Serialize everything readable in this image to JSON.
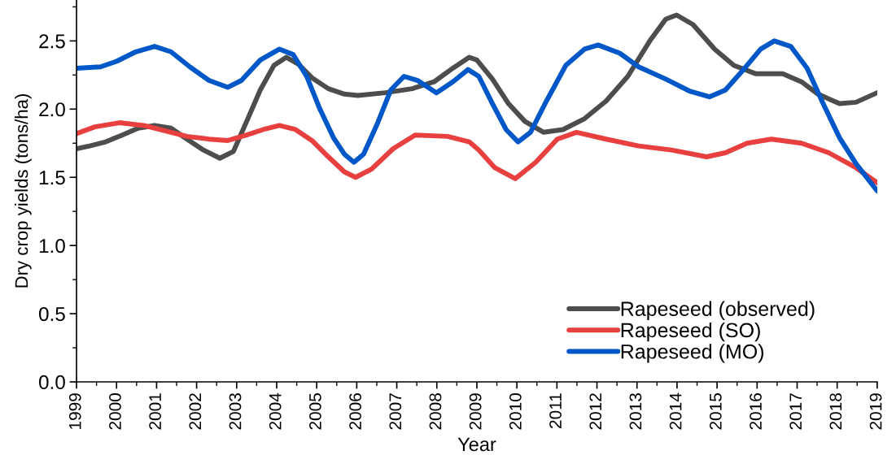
{
  "chart_data": {
    "type": "line",
    "xlabel": "Year",
    "ylabel": "Dry crop yields (tons/ha)",
    "xlim": [
      1999,
      2019
    ],
    "xticks": [
      1999,
      {
        "value": 1999.5,
        "label": null
      },
      2000,
      {
        "value": 2000.5,
        "label": null
      },
      2001,
      {
        "value": 2001.5,
        "label": null
      },
      2002,
      {
        "value": 2002.5,
        "label": null
      },
      2003,
      {
        "value": 2003.5,
        "label": null
      },
      2004,
      {
        "value": 2004.5,
        "label": null
      },
      2005,
      {
        "value": 2005.5,
        "label": null
      },
      2006,
      {
        "value": 2006.5,
        "label": null
      },
      2007,
      {
        "value": 2007.5,
        "label": null
      },
      2008,
      {
        "value": 2008.5,
        "label": null
      },
      2009,
      {
        "value": 2009.5,
        "label": null
      },
      2010,
      {
        "value": 2010.5,
        "label": null
      },
      2011,
      {
        "value": 2011.5,
        "label": null
      },
      2012,
      {
        "value": 2012.5,
        "label": null
      },
      2013,
      {
        "value": 2013.5,
        "label": null
      },
      2014,
      {
        "value": 2014.5,
        "label": null
      },
      2015,
      {
        "value": 2015.5,
        "label": null
      },
      2016,
      {
        "value": 2016.5,
        "label": null
      },
      2017,
      {
        "value": 2017.5,
        "label": null
      },
      2018,
      {
        "value": 2018.5,
        "label": null
      },
      2019
    ],
    "ylim": [
      0,
      2.8
    ],
    "yticks": [
      {
        "value": 0,
        "label": "0.0"
      },
      {
        "value": 0.25,
        "label": null
      },
      0.5,
      {
        "value": 0.75,
        "label": null
      },
      {
        "value": 1,
        "label": "1.0"
      },
      {
        "value": 1.25,
        "label": null
      },
      1.5,
      {
        "value": 1.75,
        "label": null
      },
      {
        "value": 2,
        "label": "2.0"
      },
      {
        "value": 2.25,
        "label": null
      },
      2.5,
      {
        "value": 2.75,
        "label": null
      }
    ],
    "legend": "bottom right",
    "line_style": "solid",
    "series": [
      {
        "name": "Rapeseed (observed)",
        "color": "#4d4d4d",
        "x": [
          1999,
          1999.33,
          1999.73,
          2000.14,
          2000.54,
          2000.95,
          2001.36,
          2001.76,
          2002.17,
          2002.58,
          2002.92,
          2003.25,
          2003.59,
          2003.93,
          2004.24,
          2004.54,
          2004.88,
          2005.29,
          2005.69,
          2006.03,
          2006.71,
          2007.39,
          2007.93,
          2008.4,
          2008.81,
          2009.0,
          2009.39,
          2009.79,
          2010.2,
          2010.67,
          2011.15,
          2011.69,
          2012.23,
          2012.77,
          2013.32,
          2013.72,
          2013.99,
          2014.4,
          2014.94,
          2015.42,
          2015.96,
          2016.64,
          2017.11,
          2017.52,
          2018.06,
          2018.47,
          2019
        ],
        "values": [
          1.71,
          1.73,
          1.76,
          1.81,
          1.86,
          1.88,
          1.86,
          1.78,
          1.7,
          1.64,
          1.69,
          1.91,
          2.14,
          2.32,
          2.38,
          2.33,
          2.23,
          2.15,
          2.11,
          2.1,
          2.12,
          2.15,
          2.2,
          2.3,
          2.38,
          2.36,
          2.22,
          2.04,
          1.91,
          1.83,
          1.85,
          1.93,
          2.06,
          2.24,
          2.5,
          2.66,
          2.69,
          2.62,
          2.44,
          2.32,
          2.26,
          2.26,
          2.2,
          2.11,
          2.04,
          2.05,
          2.12
        ]
      },
      {
        "name": "Rapeseed (SO)",
        "color": "#e8403f",
        "x": [
          1999,
          1999.46,
          2000.07,
          2000.68,
          2001.22,
          2001.76,
          2002.31,
          2002.78,
          2003.25,
          2003.66,
          2004.07,
          2004.47,
          2004.88,
          2005.29,
          2005.69,
          2005.97,
          2006.37,
          2006.91,
          2007.46,
          2008.27,
          2008.81,
          2009.05,
          2009.45,
          2009.96,
          2010.47,
          2011.01,
          2011.49,
          2012.23,
          2013.04,
          2013.86,
          2014.74,
          2015.21,
          2015.75,
          2016.36,
          2017.11,
          2017.79,
          2018.47,
          2019
        ],
        "values": [
          1.82,
          1.87,
          1.9,
          1.88,
          1.84,
          1.8,
          1.78,
          1.77,
          1.81,
          1.85,
          1.88,
          1.85,
          1.77,
          1.65,
          1.54,
          1.5,
          1.56,
          1.71,
          1.81,
          1.8,
          1.76,
          1.7,
          1.57,
          1.49,
          1.61,
          1.78,
          1.83,
          1.78,
          1.73,
          1.7,
          1.65,
          1.68,
          1.75,
          1.78,
          1.75,
          1.68,
          1.57,
          1.46
        ]
      },
      {
        "name": "Rapeseed (MO)",
        "color": "#0057c8",
        "x": [
          1999,
          1999.6,
          2000.0,
          2000.48,
          2000.95,
          2001.36,
          2001.83,
          2002.31,
          2002.78,
          2003.12,
          2003.59,
          2004.07,
          2004.41,
          2004.75,
          2005.08,
          2005.42,
          2005.69,
          2005.93,
          2006.17,
          2006.51,
          2006.85,
          2007.18,
          2007.52,
          2007.99,
          2008.4,
          2008.78,
          2009.05,
          2009.39,
          2009.73,
          2010.03,
          2010.34,
          2010.74,
          2011.22,
          2011.69,
          2012.03,
          2012.57,
          2013.04,
          2013.72,
          2014.33,
          2014.81,
          2015.21,
          2015.69,
          2016.09,
          2016.43,
          2016.84,
          2017.25,
          2017.65,
          2018.06,
          2018.47,
          2019
        ],
        "values": [
          2.3,
          2.31,
          2.35,
          2.42,
          2.46,
          2.42,
          2.31,
          2.21,
          2.16,
          2.21,
          2.36,
          2.44,
          2.4,
          2.24,
          2.0,
          1.79,
          1.67,
          1.61,
          1.67,
          1.89,
          2.14,
          2.24,
          2.21,
          2.12,
          2.2,
          2.29,
          2.24,
          2.04,
          1.85,
          1.76,
          1.83,
          2.06,
          2.32,
          2.44,
          2.47,
          2.41,
          2.31,
          2.22,
          2.13,
          2.09,
          2.14,
          2.3,
          2.44,
          2.5,
          2.46,
          2.3,
          2.04,
          1.79,
          1.6,
          1.4
        ]
      }
    ]
  }
}
